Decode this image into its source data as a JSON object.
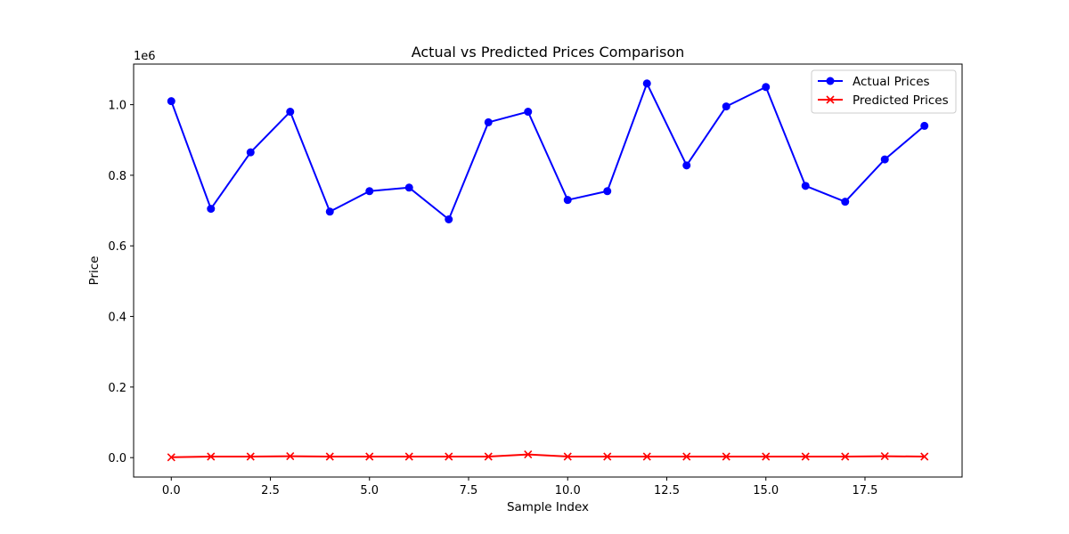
{
  "chart_data": {
    "type": "line",
    "title": "Actual vs Predicted Prices Comparison",
    "xlabel": "Sample Index",
    "ylabel": "Price",
    "y_scale_label": "1e6",
    "xlim": [
      -0.95,
      19.95
    ],
    "ylim": [
      -0.055,
      1.115
    ],
    "x_ticks": [
      0.0,
      2.5,
      5.0,
      7.5,
      10.0,
      12.5,
      15.0,
      17.5
    ],
    "x_tick_labels": [
      "0.0",
      "2.5",
      "5.0",
      "7.5",
      "10.0",
      "12.5",
      "15.0",
      "17.5"
    ],
    "y_ticks": [
      0.0,
      0.2,
      0.4,
      0.6,
      0.8,
      1.0
    ],
    "y_tick_labels": [
      "0.0",
      "0.2",
      "0.4",
      "0.6",
      "0.8",
      "1.0"
    ],
    "grid": false,
    "legend_position": "top-right",
    "x": [
      0,
      1,
      2,
      3,
      4,
      5,
      6,
      7,
      8,
      9,
      10,
      11,
      12,
      13,
      14,
      15,
      16,
      17,
      18,
      19
    ],
    "series": [
      {
        "name": "Actual Prices",
        "color": "#0000ff",
        "marker": "circle",
        "values": [
          1.01,
          0.705,
          0.865,
          0.98,
          0.697,
          0.755,
          0.765,
          0.675,
          0.95,
          0.98,
          0.73,
          0.755,
          1.06,
          0.828,
          0.995,
          1.05,
          0.77,
          0.725,
          0.845,
          0.94
        ]
      },
      {
        "name": "Predicted Prices",
        "color": "#ff0000",
        "marker": "x",
        "values": [
          0.001,
          0.003,
          0.003,
          0.004,
          0.003,
          0.003,
          0.003,
          0.003,
          0.003,
          0.009,
          0.003,
          0.003,
          0.003,
          0.003,
          0.003,
          0.003,
          0.003,
          0.003,
          0.004,
          0.003
        ]
      }
    ]
  }
}
